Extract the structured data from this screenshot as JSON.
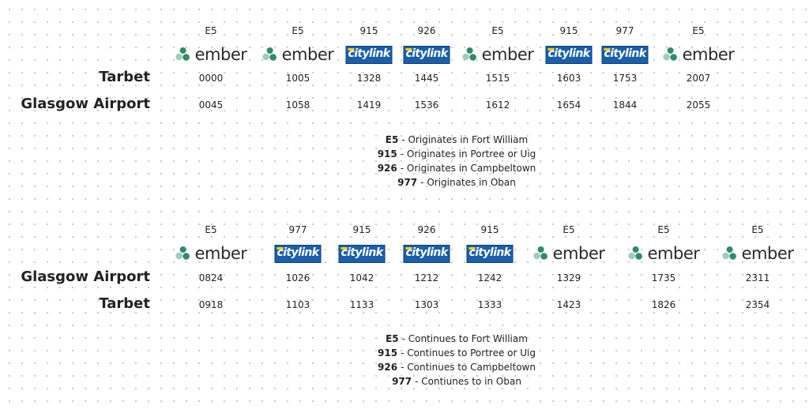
{
  "timetables": [
    {
      "routes": [
        "E5",
        "E5",
        "915",
        "926",
        "E5",
        "915",
        "977",
        "E5"
      ],
      "operators": [
        "ember",
        "ember",
        "citylink",
        "citylink",
        "ember",
        "citylink",
        "citylink",
        "ember"
      ],
      "rows": [
        {
          "stop": "Tarbet",
          "times": [
            "0000",
            "1005",
            "1328",
            "1445",
            "1515",
            "1603",
            "1753",
            "2007"
          ]
        },
        {
          "stop": "Glasgow Airport",
          "times": [
            "0045",
            "1058",
            "1419",
            "1536",
            "1612",
            "1654",
            "1844",
            "2055"
          ]
        }
      ],
      "notes": [
        {
          "code": "E5",
          "text": "- Originates in Fort William"
        },
        {
          "code": "915",
          "text": "- Originates in Portree or Uig"
        },
        {
          "code": "926",
          "text": "- Originates in Campbeltown"
        },
        {
          "code": "977",
          "text": "- Originates in Oban"
        }
      ]
    },
    {
      "routes": [
        "E5",
        "977",
        "915",
        "926",
        "915",
        "E5",
        "E5",
        "E5"
      ],
      "operators": [
        "ember",
        "citylink",
        "citylink",
        "citylink",
        "citylink",
        "ember",
        "ember",
        "ember"
      ],
      "rows": [
        {
          "stop": "Glasgow Airport",
          "times": [
            "0824",
            "1026",
            "1042",
            "1212",
            "1242",
            "1329",
            "1735",
            "2311"
          ]
        },
        {
          "stop": "Tarbet",
          "times": [
            "0918",
            "1103",
            "1133",
            "1303",
            "1333",
            "1423",
            "1826",
            "2354"
          ]
        }
      ],
      "notes": [
        {
          "code": "E5",
          "text": "- Continues to Fort William"
        },
        {
          "code": "915",
          "text": "- Continues to Portree or Uig"
        },
        {
          "code": "926",
          "text": "- Continues to Campbeltown"
        },
        {
          "code": "977",
          "text": "- Contiunes to in Oban"
        }
      ]
    }
  ]
}
